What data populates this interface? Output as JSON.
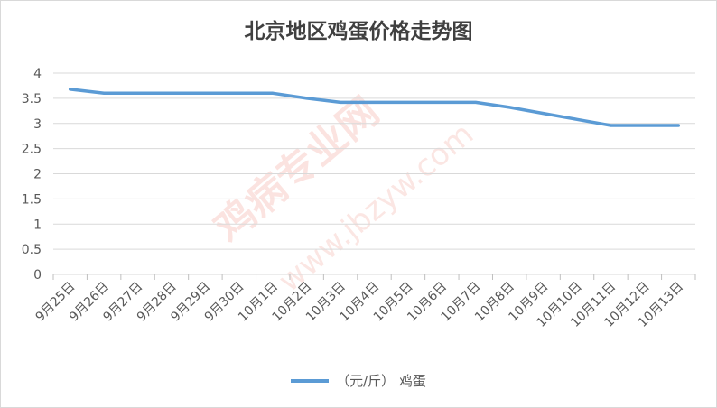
{
  "watermark": {
    "text": "鸡病专业网",
    "url": "www.jbzyw.com"
  },
  "colors": {
    "series": "#5b9bd5",
    "grid": "#d9d9d9",
    "axis": "#bfbfbf"
  },
  "chart_data": {
    "type": "line",
    "title": "北京地区鸡蛋价格走势图",
    "xlabel": "",
    "ylabel": "",
    "ylim": [
      0,
      4
    ],
    "yticks": [
      0,
      0.5,
      1,
      1.5,
      2,
      2.5,
      3,
      3.5,
      4
    ],
    "grid": true,
    "legend_position": "bottom",
    "categories": [
      "9月25日",
      "9月26日",
      "9月27日",
      "9月28日",
      "9月29日",
      "9月30日",
      "10月1日",
      "10月2日",
      "10月3日",
      "10月4日",
      "10月5日",
      "10月6日",
      "10月7日",
      "10月8日",
      "10月9日",
      "10月10日",
      "10月11日",
      "10月12日",
      "10月13日"
    ],
    "series": [
      {
        "name": "（元/斤） 鸡蛋",
        "values": [
          3.68,
          3.6,
          3.6,
          3.6,
          3.6,
          3.6,
          3.6,
          3.5,
          3.42,
          3.42,
          3.42,
          3.42,
          3.42,
          3.32,
          3.2,
          3.08,
          2.96,
          2.96,
          2.96
        ]
      }
    ]
  }
}
